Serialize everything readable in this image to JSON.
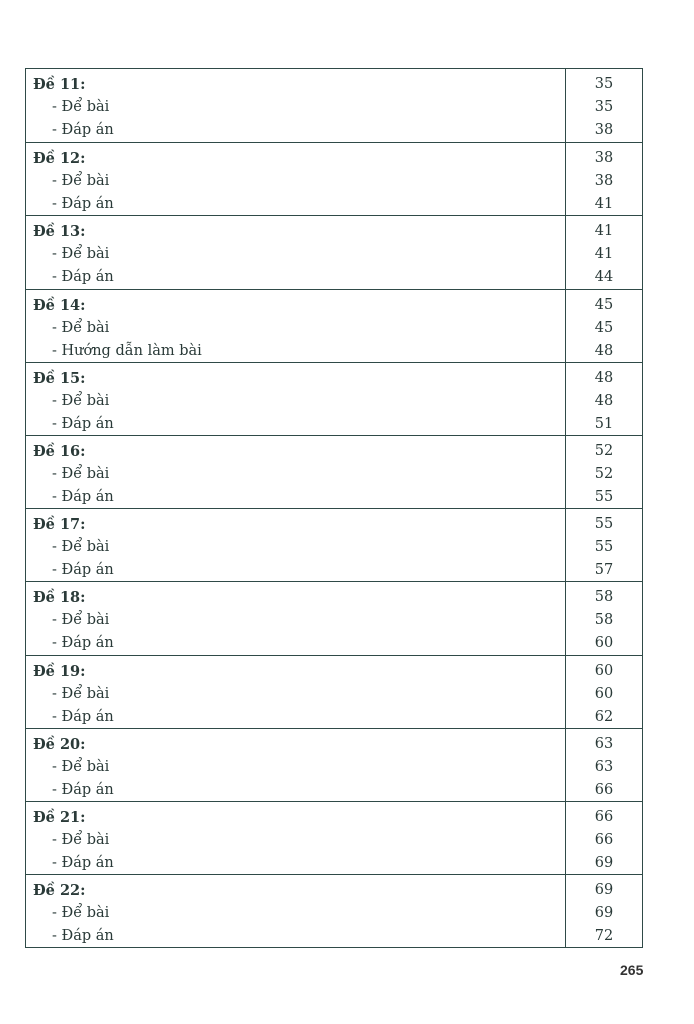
{
  "toc": [
    {
      "title": "Đề 11:",
      "page": "35",
      "items": [
        {
          "label": "- Để bài",
          "page": "35"
        },
        {
          "label": "- Đáp án",
          "page": "38"
        }
      ]
    },
    {
      "title": "Đề 12:",
      "page": "38",
      "items": [
        {
          "label": "- Để bài",
          "page": "38"
        },
        {
          "label": "- Đáp án",
          "page": "41"
        }
      ]
    },
    {
      "title": "Đề 13:",
      "page": "41",
      "items": [
        {
          "label": "- Để bài",
          "page": "41"
        },
        {
          "label": "- Đáp án",
          "page": "44"
        }
      ]
    },
    {
      "title": "Đề 14:",
      "page": "45",
      "items": [
        {
          "label": "- Để bài",
          "page": "45"
        },
        {
          "label": "- Hướng dẫn làm bài",
          "page": "48"
        }
      ]
    },
    {
      "title": "Đề 15:",
      "page": "48",
      "items": [
        {
          "label": "- Để bài",
          "page": "48"
        },
        {
          "label": "- Đáp án",
          "page": "51"
        }
      ]
    },
    {
      "title": "Đề 16:",
      "page": "52",
      "items": [
        {
          "label": "- Để bài",
          "page": "52"
        },
        {
          "label": "- Đáp án",
          "page": "55"
        }
      ]
    },
    {
      "title": "Đề 17:",
      "page": "55",
      "items": [
        {
          "label": "- Để bài",
          "page": "55"
        },
        {
          "label": "- Đáp án",
          "page": "57"
        }
      ]
    },
    {
      "title": "Đề 18:",
      "page": "58",
      "items": [
        {
          "label": "- Để bài",
          "page": "58"
        },
        {
          "label": "- Đáp án",
          "page": "60"
        }
      ]
    },
    {
      "title": "Đề 19:",
      "page": "60",
      "items": [
        {
          "label": "- Để bài",
          "page": "60"
        },
        {
          "label": "- Đáp án",
          "page": "62"
        }
      ]
    },
    {
      "title": "Đề 20:",
      "page": "63",
      "items": [
        {
          "label": "- Để bài",
          "page": "63"
        },
        {
          "label": "- Đáp án",
          "page": "66"
        }
      ]
    },
    {
      "title": "Đề 21:",
      "page": "66",
      "items": [
        {
          "label": "- Để bài",
          "page": "66"
        },
        {
          "label": "- Đáp án",
          "page": "69"
        }
      ]
    },
    {
      "title": "Đề 22:",
      "page": "69",
      "items": [
        {
          "label": "- Để bài",
          "page": "69"
        },
        {
          "label": "- Đáp án",
          "page": "72"
        }
      ]
    }
  ],
  "page_number": "265"
}
